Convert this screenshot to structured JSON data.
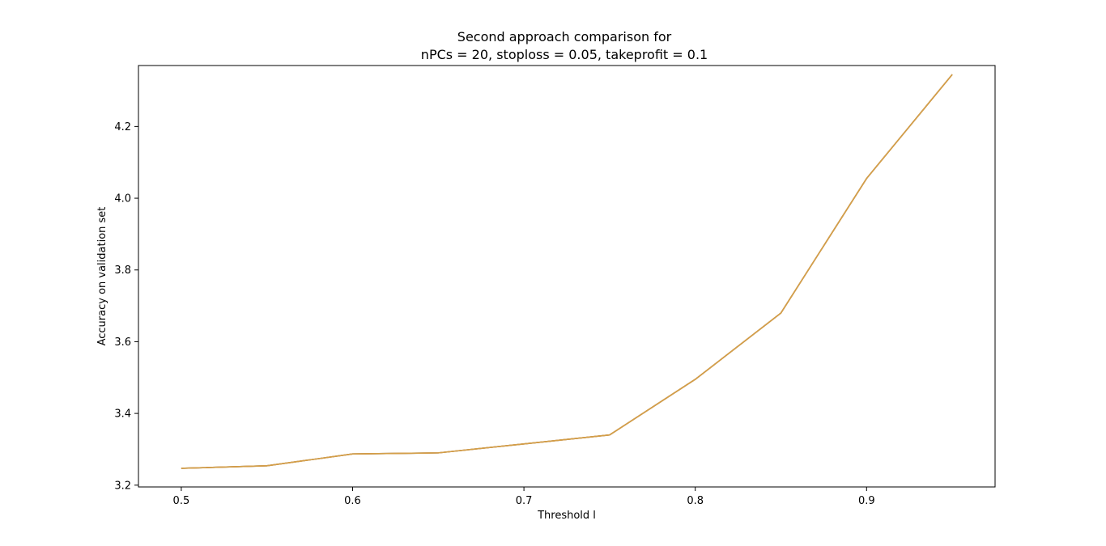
{
  "chart_data": {
    "type": "line",
    "title_lines": [
      "Second approach comparison for",
      "nPCs = 20, stoploss = 0.05, takeprofit = 0.1"
    ],
    "xlabel": "Threshold l",
    "ylabel": "Accuracy on validation set",
    "xlim": [
      0.475,
      0.975
    ],
    "ylim": [
      3.195,
      4.37
    ],
    "x_ticks": [
      0.5,
      0.6,
      0.7,
      0.8,
      0.9
    ],
    "x_tick_labels": [
      "0.5",
      "0.6",
      "0.7",
      "0.8",
      "0.9"
    ],
    "y_ticks": [
      3.2,
      3.4,
      3.6,
      3.8,
      4.0,
      4.2
    ],
    "y_tick_labels": [
      "3.2",
      "3.4",
      "3.6",
      "3.8",
      "4.0",
      "4.2"
    ],
    "grid": false,
    "series": [
      {
        "color": "#1f77b4",
        "x": [
          0.5,
          0.55,
          0.6,
          0.65,
          0.7,
          0.75,
          0.8,
          0.85,
          0.9,
          0.95
        ],
        "y": [
          3.247,
          3.254,
          3.287,
          3.29,
          3.315,
          3.34,
          3.495,
          3.68,
          4.055,
          4.345
        ]
      },
      {
        "color": "#ff7f0e",
        "x": [
          0.5,
          0.55,
          0.6,
          0.65,
          0.7,
          0.75,
          0.8,
          0.85,
          0.9,
          0.95
        ],
        "y": [
          3.247,
          3.254,
          3.287,
          3.29,
          3.315,
          3.34,
          3.495,
          3.68,
          4.055,
          4.345
        ]
      },
      {
        "color": "#d4a04a",
        "x": [
          0.5,
          0.55,
          0.6,
          0.65,
          0.7,
          0.75,
          0.8,
          0.85,
          0.9,
          0.95
        ],
        "y": [
          3.247,
          3.254,
          3.287,
          3.29,
          3.315,
          3.34,
          3.495,
          3.68,
          4.055,
          4.345
        ]
      }
    ]
  }
}
